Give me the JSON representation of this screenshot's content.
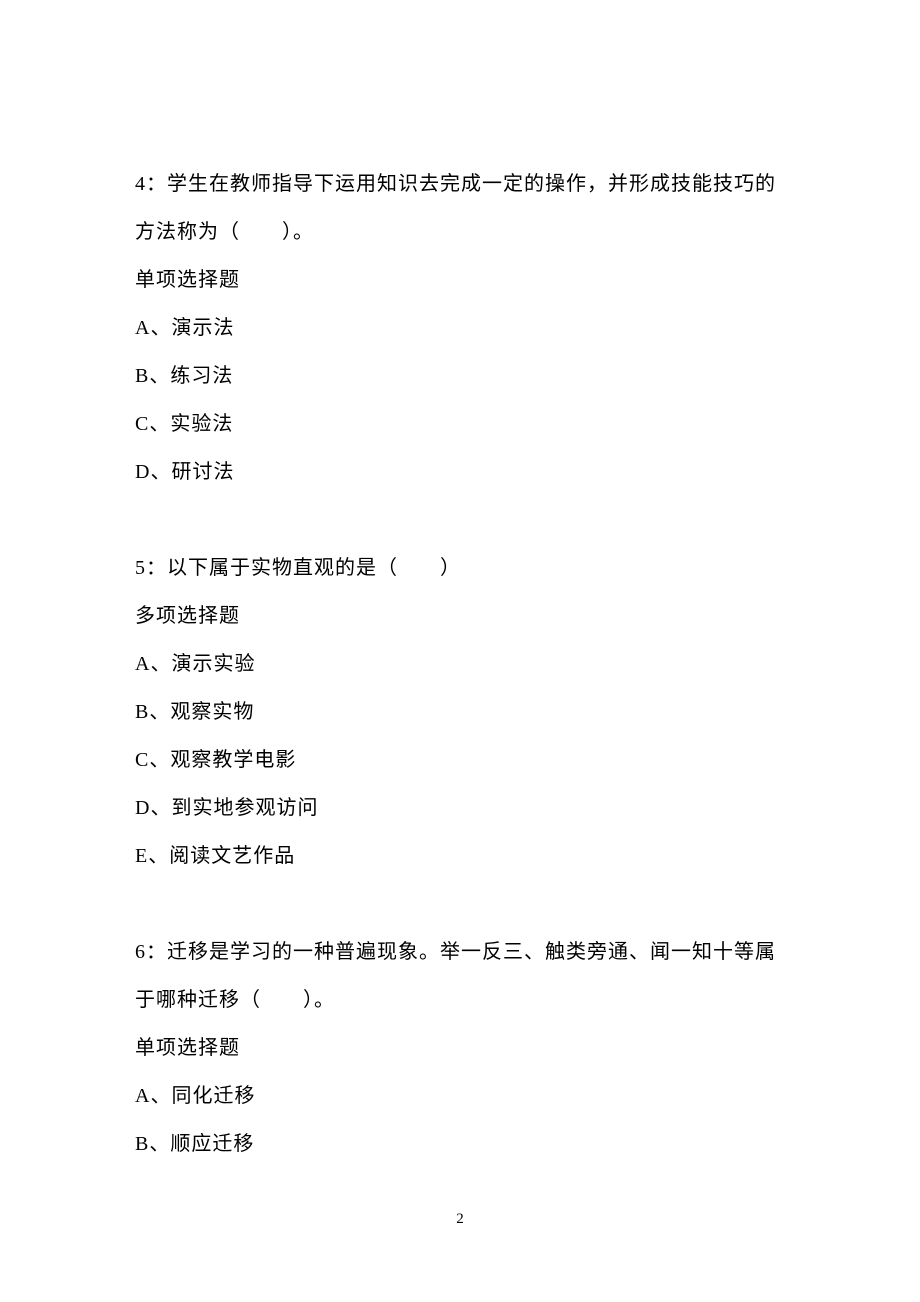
{
  "page": {
    "number": "2",
    "background_color": "#ffffff",
    "text_color": "#000000",
    "font_size_pt": 15,
    "line_height": 2.4
  },
  "questions": [
    {
      "number": "4",
      "stem": "4：学生在教师指导下运用知识去完成一定的操作，并形成技能技巧的方法称为（　　）。",
      "type_label": "单项选择题",
      "options": [
        "A、演示法",
        "B、练习法",
        "C、实验法",
        "D、研讨法"
      ]
    },
    {
      "number": "5",
      "stem": "5：以下属于实物直观的是（　　）",
      "type_label": "多项选择题",
      "options": [
        "A、演示实验",
        "B、观察实物",
        "C、观察教学电影",
        "D、到实地参观访问",
        "E、阅读文艺作品"
      ]
    },
    {
      "number": "6",
      "stem": "6：迁移是学习的一种普遍现象。举一反三、触类旁通、闻一知十等属于哪种迁移（　　）。",
      "type_label": "单项选择题",
      "options": [
        "A、同化迁移",
        "B、顺应迁移"
      ]
    }
  ]
}
